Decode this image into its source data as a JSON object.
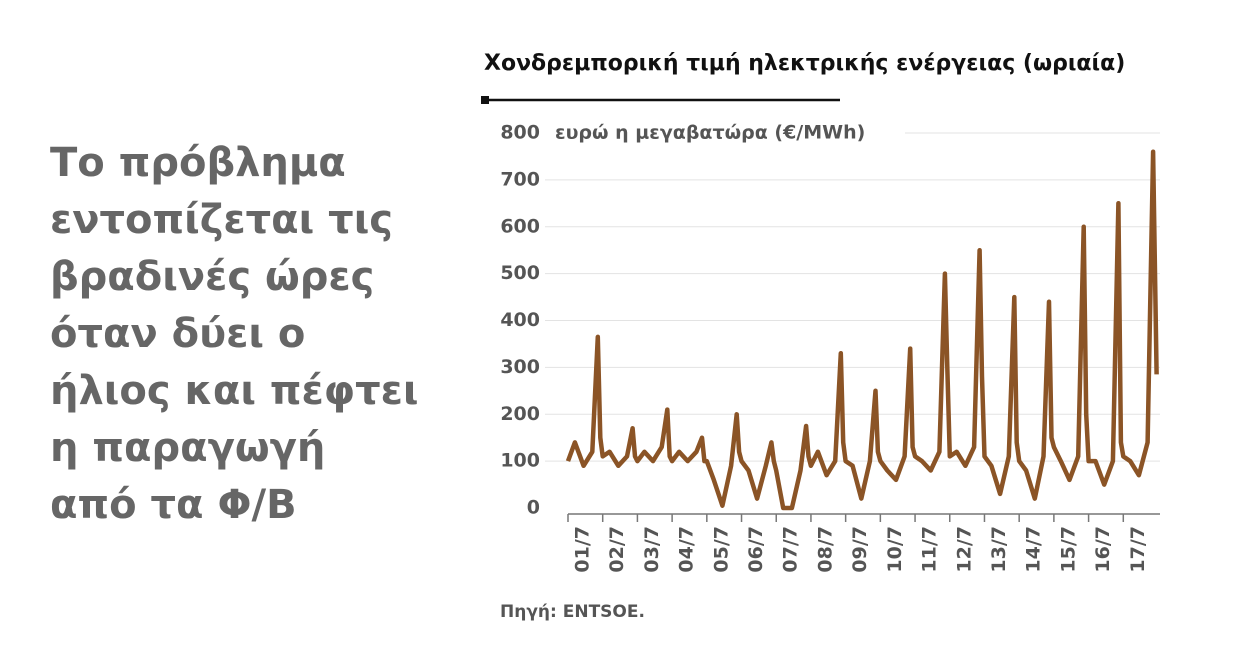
{
  "body": {
    "lines": [
      "Το πρόβλημα",
      "εντοπίζεται τις",
      "βραδινές ώρες",
      "όταν δύει ο",
      "ήλιος και πέφτει",
      "η παραγωγή",
      "από τα Φ/Β"
    ]
  },
  "chart_data": {
    "type": "line",
    "title": "Χονδρεμπορική τιμή ηλεκτρικής ενέργειας (ωριαία)",
    "y_label": "ευρώ η μεγαβατώρα (€/MWh)",
    "source": "Πηγή: ENTSOE.",
    "color": "#8b5426",
    "grid": true,
    "xlim": [
      0,
      17
    ],
    "ylim": [
      0,
      800
    ],
    "yticks": [
      0,
      100,
      200,
      300,
      400,
      500,
      600,
      700,
      800
    ],
    "xticks": [
      {
        "value": 0,
        "label": "01/7"
      },
      {
        "value": 1,
        "label": "02/7"
      },
      {
        "value": 2,
        "label": "03/7"
      },
      {
        "value": 3,
        "label": "04/7"
      },
      {
        "value": 4,
        "label": "05/7"
      },
      {
        "value": 5,
        "label": "06/7"
      },
      {
        "value": 6,
        "label": "07/7"
      },
      {
        "value": 7,
        "label": "08/7"
      },
      {
        "value": 8,
        "label": "09/7"
      },
      {
        "value": 9,
        "label": "10/7"
      },
      {
        "value": 10,
        "label": "11/7"
      },
      {
        "value": 11,
        "label": "12/7"
      },
      {
        "value": 12,
        "label": "13/7"
      },
      {
        "value": 13,
        "label": "14/7"
      },
      {
        "value": 14,
        "label": "15/7"
      },
      {
        "value": 15,
        "label": "16/7"
      },
      {
        "value": 16,
        "label": "17/7"
      }
    ],
    "x": [
      0,
      0.2,
      0.45,
      0.7,
      0.86,
      0.93,
      1,
      1.2,
      1.45,
      1.7,
      1.86,
      1.93,
      2,
      2.2,
      2.45,
      2.7,
      2.86,
      2.93,
      3,
      3.2,
      3.45,
      3.7,
      3.86,
      3.93,
      4,
      4.2,
      4.45,
      4.7,
      4.86,
      4.93,
      5,
      5.2,
      5.45,
      5.7,
      5.86,
      5.93,
      6,
      6.2,
      6.45,
      6.7,
      6.86,
      6.93,
      7,
      7.2,
      7.45,
      7.7,
      7.86,
      7.93,
      8,
      8.2,
      8.45,
      8.7,
      8.86,
      8.93,
      9,
      9.2,
      9.45,
      9.7,
      9.86,
      9.93,
      10,
      10.2,
      10.45,
      10.7,
      10.86,
      10.93,
      11,
      11.2,
      11.45,
      11.7,
      11.86,
      11.93,
      12,
      12.2,
      12.45,
      12.7,
      12.86,
      12.93,
      13,
      13.2,
      13.45,
      13.7,
      13.86,
      13.93,
      14,
      14.2,
      14.45,
      14.7,
      14.86,
      14.93,
      15,
      15.2,
      15.45,
      15.7,
      15.86,
      15.93,
      16,
      16.2,
      16.45,
      16.7,
      16.86,
      16.96
    ],
    "values": [
      100,
      140,
      90,
      120,
      365,
      150,
      110,
      120,
      90,
      110,
      170,
      110,
      100,
      120,
      100,
      130,
      210,
      110,
      100,
      120,
      100,
      120,
      150,
      100,
      100,
      60,
      5,
      90,
      200,
      120,
      100,
      80,
      20,
      90,
      140,
      100,
      80,
      0,
      0,
      80,
      175,
      110,
      90,
      120,
      70,
      100,
      330,
      140,
      100,
      90,
      20,
      100,
      250,
      120,
      100,
      80,
      60,
      110,
      340,
      130,
      110,
      100,
      80,
      120,
      500,
      300,
      110,
      120,
      90,
      130,
      550,
      280,
      110,
      90,
      30,
      110,
      450,
      140,
      100,
      80,
      20,
      110,
      440,
      150,
      130,
      100,
      60,
      110,
      600,
      200,
      100,
      100,
      50,
      100,
      650,
      140,
      110,
      100,
      70,
      140,
      760,
      285
    ]
  }
}
